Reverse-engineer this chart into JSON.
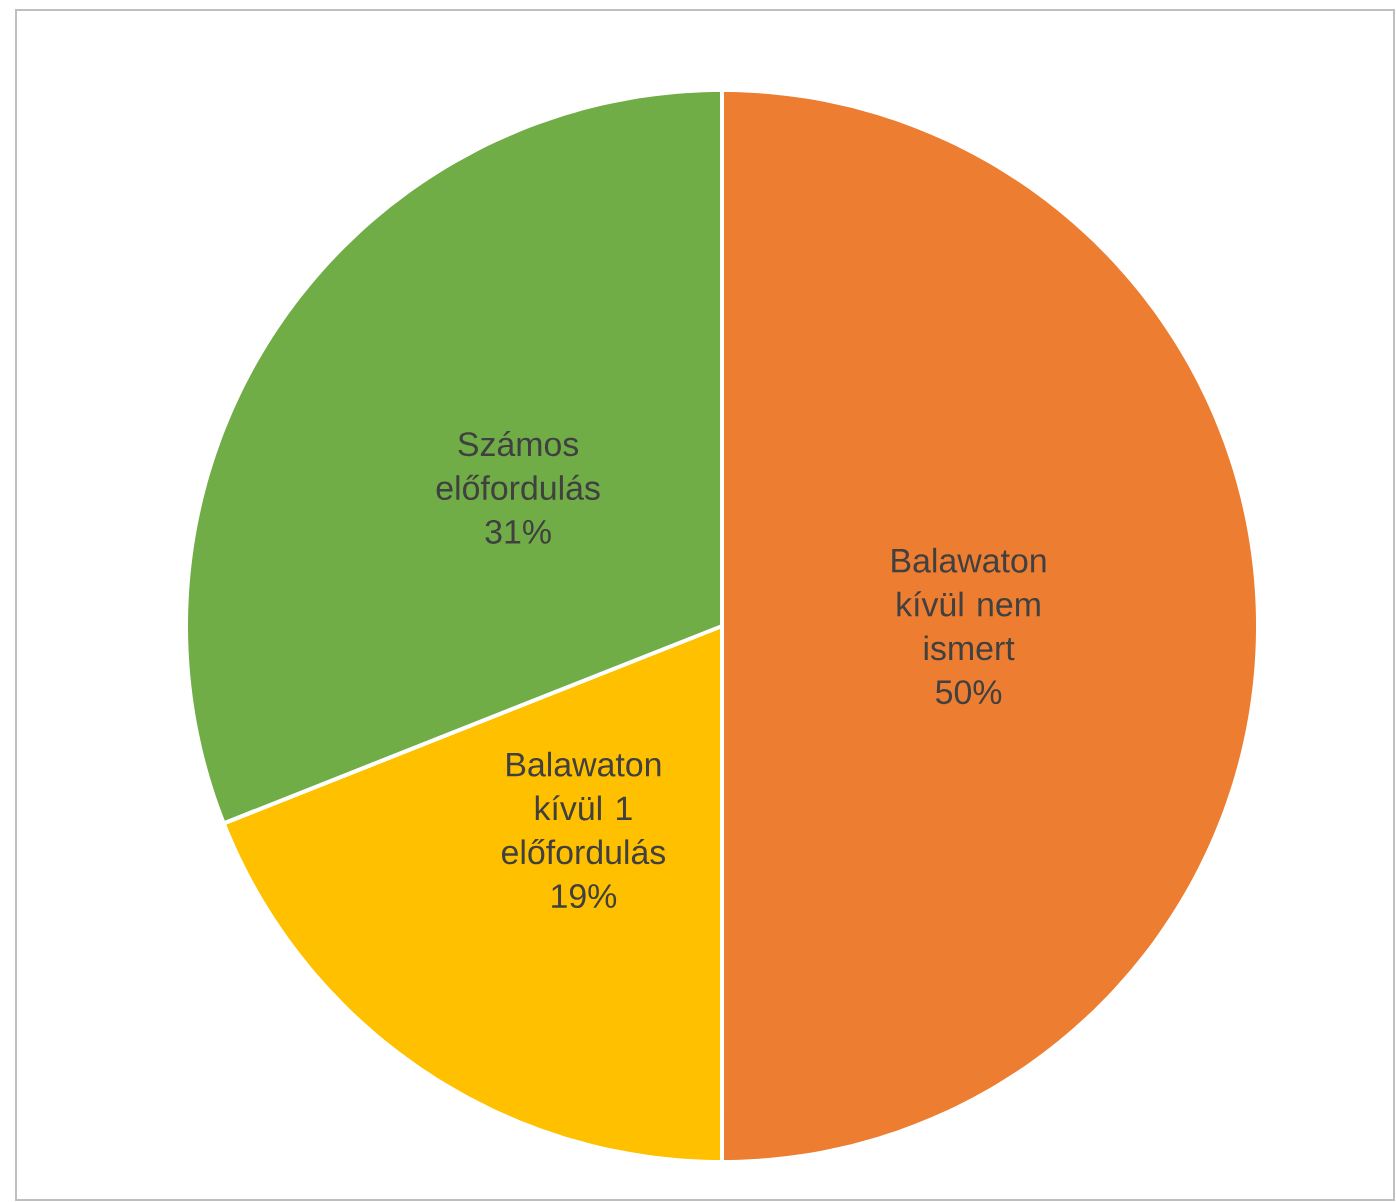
{
  "chart_data": {
    "type": "pie",
    "categories": [
      "Balawaton kívül nem ismert",
      "Balawaton kívül 1 előfordulás",
      "Számos előfordulás"
    ],
    "values": [
      50,
      19,
      31
    ],
    "colors": [
      "#ed7d31",
      "#ffc000",
      "#70ad47"
    ],
    "value_labels": [
      "50%",
      "19%",
      "31%"
    ]
  }
}
